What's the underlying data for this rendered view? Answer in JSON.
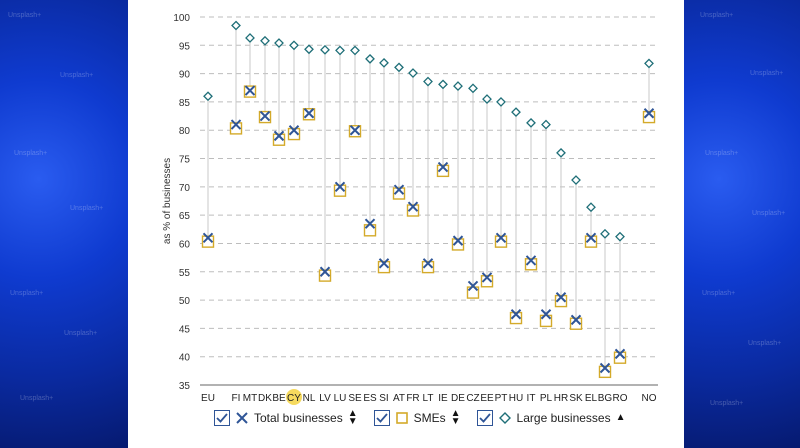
{
  "watermark": "Unsplash+",
  "legend": {
    "items": [
      {
        "label": "Total businesses",
        "marker": "x-icon",
        "sort": "sort-both-icon"
      },
      {
        "label": "SMEs",
        "marker": "square-icon",
        "sort": "sort-both-icon"
      },
      {
        "label": "Large businesses",
        "marker": "diamond-icon",
        "sort": "sort-up-icon"
      }
    ]
  },
  "colors": {
    "total": "#2f5597",
    "sme": "#d4aa2a",
    "large": "#1f6f78",
    "highlight": "#f5d442"
  },
  "chart_data": {
    "type": "scatter",
    "ylabel": "as % of businesses",
    "ylim": [
      35,
      100
    ],
    "yticks": [
      35,
      40,
      45,
      50,
      55,
      60,
      65,
      70,
      75,
      80,
      85,
      90,
      95,
      100
    ],
    "grid": true,
    "legend_position": "bottom",
    "highlighted_category": "CY",
    "categories": [
      "EU",
      "FI",
      "MT",
      "DK",
      "BE",
      "CY",
      "NL",
      "LV",
      "LU",
      "SE",
      "ES",
      "SI",
      "AT",
      "FR",
      "LT",
      "IE",
      "DE",
      "CZ",
      "EE",
      "PT",
      "HU",
      "IT",
      "PL",
      "HR",
      "SK",
      "EL",
      "BG",
      "RO",
      "NO"
    ],
    "series": [
      {
        "name": "Total businesses",
        "values": [
          61,
          81,
          87,
          82.5,
          79,
          80,
          83,
          55,
          70,
          80,
          63.5,
          56.5,
          69.5,
          66.5,
          56.5,
          73.5,
          60.5,
          52.5,
          54,
          61,
          47.5,
          57,
          47.5,
          50.5,
          46.5,
          61,
          38,
          40.5,
          83
        ]
      },
      {
        "name": "SMEs",
        "values": [
          60.5,
          80.5,
          87,
          82.5,
          78.5,
          79.5,
          83,
          54.5,
          69.5,
          80,
          62.5,
          56,
          69,
          66,
          56,
          73,
          60,
          51.5,
          53.5,
          60.5,
          47,
          56.5,
          46.5,
          50,
          46,
          60.5,
          37.5,
          40,
          82.5
        ]
      },
      {
        "name": "Large businesses",
        "values": [
          86,
          98.5,
          96.3,
          95.8,
          95.4,
          95,
          94.3,
          94.2,
          94.1,
          94.1,
          92.6,
          91.9,
          91.1,
          90.1,
          88.6,
          88.1,
          87.8,
          87.4,
          85.5,
          85,
          83.2,
          81.3,
          81,
          76,
          71.2,
          66.4,
          61.7,
          61.2,
          91.8
        ]
      }
    ]
  }
}
